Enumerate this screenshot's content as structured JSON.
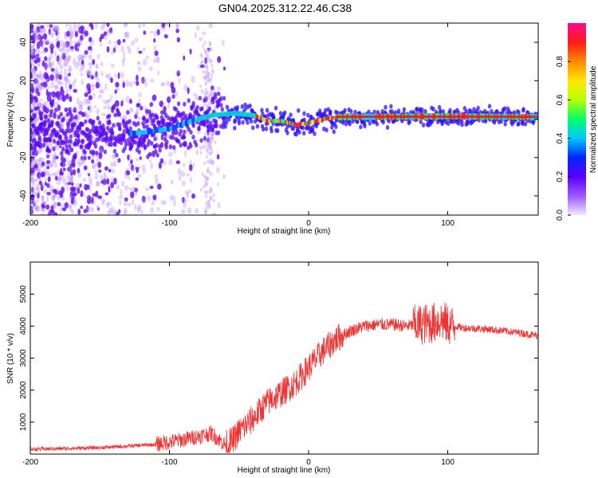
{
  "title": "GN04.2025.312.22.46.C38",
  "chart_data": [
    {
      "type": "heatmap",
      "xlabel": "Height of straight line (km)",
      "ylabel": "Frequency (Hz)",
      "xlim": [
        -200,
        165
      ],
      "ylim": [
        -50,
        50
      ],
      "x_ticks": [
        -200,
        -100,
        0,
        100
      ],
      "y_ticks": [
        -40,
        -20,
        0,
        20,
        40
      ],
      "colorbar": {
        "label": "Normalized spectral amplitude",
        "range": [
          0,
          1
        ],
        "ticks": [
          "0.0",
          "0.2",
          "0.4",
          "0.6",
          "0.8"
        ],
        "colors": [
          "#f2e9ff",
          "#9b59ff",
          "#5b00ff",
          "#0026ff",
          "#00c8ff",
          "#00ff6a",
          "#b8ff00",
          "#ffe600",
          "#ff8a00",
          "#ff1a1a",
          "#ff0a8c"
        ]
      },
      "center_line": [
        {
          "x": -200,
          "f": -7
        },
        {
          "x": -150,
          "f": -8
        },
        {
          "x": -120,
          "f": -7
        },
        {
          "x": -100,
          "f": -5
        },
        {
          "x": -85,
          "f": -1
        },
        {
          "x": -70,
          "f": 2
        },
        {
          "x": -55,
          "f": 3
        },
        {
          "x": -40,
          "f": 2
        },
        {
          "x": -30,
          "f": -1
        },
        {
          "x": -20,
          "f": -1
        },
        {
          "x": -10,
          "f": -3
        },
        {
          "x": 0,
          "f": -2
        },
        {
          "x": 10,
          "f": 0
        },
        {
          "x": 20,
          "f": 1
        },
        {
          "x": 100,
          "f": 1.5
        },
        {
          "x": 165,
          "f": 1
        }
      ]
    },
    {
      "type": "line",
      "xlabel": "Height of straight line (km)",
      "ylabel": "SNR (10 * v/v)",
      "xlim": [
        -200,
        165
      ],
      "ylim": [
        0,
        6000
      ],
      "x_ticks": [
        -200,
        -100,
        0,
        100
      ],
      "y_ticks": [
        1000,
        2000,
        3000,
        4000,
        5000
      ],
      "color": "#ee3333",
      "series": [
        {
          "name": "SNR",
          "x": [
            -200,
            -150,
            -110,
            -100,
            -90,
            -80,
            -70,
            -60,
            -55,
            -50,
            -40,
            -30,
            -20,
            -10,
            0,
            10,
            20,
            30,
            40,
            50,
            60,
            70,
            80,
            90,
            95,
            100,
            110,
            130,
            150,
            165
          ],
          "y": [
            150,
            200,
            300,
            380,
            450,
            550,
            650,
            300,
            400,
            700,
            1100,
            1600,
            1900,
            2200,
            2700,
            3200,
            3600,
            3850,
            4000,
            4050,
            4050,
            4000,
            4050,
            4100,
            4200,
            4050,
            3950,
            3900,
            3800,
            3700
          ]
        }
      ]
    }
  ]
}
